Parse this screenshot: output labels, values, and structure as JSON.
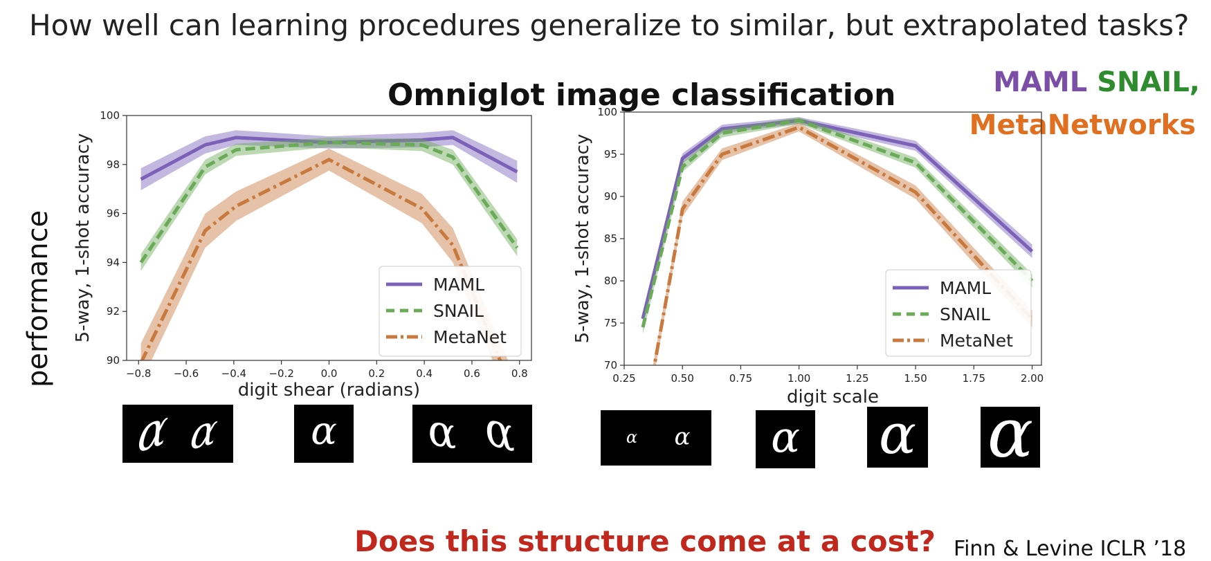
{
  "slide": {
    "headline": "How well can learning procedures generalize to similar, but extrapolated tasks?",
    "subtitle": "Omniglot image classification",
    "side_label": "performance",
    "methods_callout": [
      {
        "text": "MAML",
        "color": "#7b4fa8"
      },
      {
        "text": "SNAIL,",
        "color": "#2e8b2e"
      },
      {
        "text": "MetaNetworks",
        "color": "#e07020"
      }
    ],
    "bottom_question": "Does this structure come at a cost?",
    "bottom_question_color": "#c0281e",
    "citation": "Finn & Levine ICLR ’18",
    "digit_glyph": "α"
  },
  "chart_data": [
    {
      "type": "line",
      "xlabel": "digit shear (radians)",
      "ylabel": "5-way, 1-shot accuracy",
      "xlim": [
        -0.85,
        0.85
      ],
      "ylim": [
        90,
        100
      ],
      "xticks": [
        -0.8,
        -0.6,
        -0.4,
        -0.2,
        0.0,
        0.2,
        0.4,
        0.6,
        0.8
      ],
      "xtick_labels": [
        "−0.8",
        "−0.6",
        "−0.4",
        "−0.2",
        "0.0",
        "0.2",
        "0.4",
        "0.6",
        "0.8"
      ],
      "yticks": [
        90,
        92,
        94,
        96,
        98,
        100
      ],
      "ytick_labels": [
        "90",
        "92",
        "94",
        "96",
        "98",
        "100"
      ],
      "legend_position": "bottom-right",
      "series": [
        {
          "name": "MAML",
          "color": "#7b61b8",
          "dash": "solid",
          "x": [
            -0.79,
            -0.52,
            -0.39,
            0.0,
            0.39,
            0.52,
            0.79
          ],
          "y": [
            97.4,
            98.8,
            99.1,
            98.9,
            99.0,
            99.1,
            97.7
          ],
          "band": [
            0.45,
            0.35,
            0.3,
            0.25,
            0.3,
            0.3,
            0.45
          ]
        },
        {
          "name": "SNAIL",
          "color": "#6aaa58",
          "dash": "dashed",
          "x": [
            -0.79,
            -0.52,
            -0.39,
            0.0,
            0.39,
            0.52,
            0.79
          ],
          "y": [
            94.0,
            97.9,
            98.6,
            98.9,
            98.8,
            98.3,
            94.6
          ],
          "band": [
            0.35,
            0.3,
            0.25,
            0.2,
            0.25,
            0.3,
            0.35
          ]
        },
        {
          "name": "MetaNet",
          "color": "#c87a3e",
          "dash": "dashdot",
          "x": [
            -0.79,
            -0.52,
            -0.39,
            0.0,
            0.39,
            0.52,
            0.79
          ],
          "y": [
            89.9,
            95.3,
            96.3,
            98.2,
            96.2,
            94.7,
            88.3
          ],
          "band": [
            0.8,
            0.7,
            0.6,
            0.45,
            0.6,
            0.7,
            0.8
          ]
        }
      ]
    },
    {
      "type": "line",
      "xlabel": "digit scale",
      "ylabel": "5-way, 1-shot accuracy",
      "xlim": [
        0.25,
        2.04
      ],
      "ylim": [
        70,
        100
      ],
      "xticks": [
        0.25,
        0.5,
        0.75,
        1.0,
        1.25,
        1.5,
        1.75,
        2.0
      ],
      "xtick_labels": [
        "0.25",
        "0.50",
        "0.75",
        "1.00",
        "1.25",
        "1.50",
        "1.75",
        "2.00"
      ],
      "yticks": [
        70,
        75,
        80,
        85,
        90,
        95,
        100
      ],
      "ytick_labels": [
        "70",
        "75",
        "80",
        "85",
        "90",
        "95",
        "100"
      ],
      "legend_position": "bottom-right",
      "series": [
        {
          "name": "MAML",
          "color": "#7b61b8",
          "dash": "solid",
          "x": [
            0.33,
            0.5,
            0.67,
            1.0,
            1.5,
            2.0
          ],
          "y": [
            75.5,
            94.5,
            98.0,
            99.0,
            96.0,
            83.5
          ],
          "band": [
            0.8,
            0.6,
            0.5,
            0.4,
            0.6,
            0.8
          ]
        },
        {
          "name": "SNAIL",
          "color": "#6aaa58",
          "dash": "dashed",
          "x": [
            0.33,
            0.5,
            0.67,
            1.0,
            1.5,
            2.0
          ],
          "y": [
            74.5,
            93.5,
            97.5,
            99.0,
            94.0,
            80.0
          ],
          "band": [
            0.8,
            0.6,
            0.5,
            0.4,
            0.6,
            0.8
          ]
        },
        {
          "name": "MetaNet",
          "color": "#c87a3e",
          "dash": "dashdot",
          "x": [
            0.37,
            0.5,
            0.67,
            1.0,
            1.5,
            2.0
          ],
          "y": [
            68.5,
            88.5,
            95.0,
            98.2,
            90.5,
            75.5
          ],
          "band": [
            1.0,
            0.9,
            0.7,
            0.5,
            0.8,
            1.0
          ]
        }
      ]
    }
  ],
  "sample_images": [
    {
      "label": "shear samples",
      "glyph_count": 2
    },
    {
      "label": "unsheared sample",
      "glyph_count": 1
    },
    {
      "label": "shear samples",
      "glyph_count": 2
    },
    {
      "label": "small scale samples",
      "glyph_count": 2
    },
    {
      "label": "scale 1.0 sample",
      "glyph_count": 1
    },
    {
      "label": "scale 1.5 sample",
      "glyph_count": 1
    },
    {
      "label": "scale 2.0 sample",
      "glyph_count": 1
    }
  ]
}
